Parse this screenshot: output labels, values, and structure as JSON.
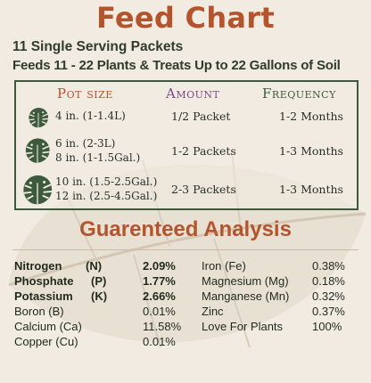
{
  "title": "Feed Chart",
  "subtitle1": "11 Single Serving Packets",
  "subtitle2": "Feeds 11 - 22 Plants & Treats Up to 22 Gallons of Soil",
  "feed_table": {
    "headers": {
      "pot_size": "Pot size",
      "amount": "Amount",
      "frequency": "Frequency"
    },
    "rows": [
      {
        "sizes": [
          "4 in. (1-1.4L)"
        ],
        "amount": "1/2 Packet",
        "frequency": "1-2 Months"
      },
      {
        "sizes": [
          "6 in. (2-3L)",
          "8 in. (1-1.5Gal.)"
        ],
        "amount": "1-2 Packets",
        "frequency": "1-3 Months"
      },
      {
        "sizes": [
          "10 in. (1.5-2.5Gal.)",
          "12 in. (2.5-4.5Gal.)"
        ],
        "amount": "2-3 Packets",
        "frequency": "1-3 Months"
      }
    ]
  },
  "analysis": {
    "title": "Guarenteed Analysis",
    "left": [
      {
        "name": "Nitrogen",
        "symbol": "(N)",
        "value": "2.09%"
      },
      {
        "name": "Phosphate",
        "symbol": "(P)",
        "value": "1.77%"
      },
      {
        "name": "Potassium",
        "symbol": "(K)",
        "value": "2.66%"
      },
      {
        "name": "Boron (B)",
        "symbol": "",
        "value": "0.01%"
      },
      {
        "name": "Calcium (Ca)",
        "symbol": "",
        "value": "11.58%"
      },
      {
        "name": "Copper (Cu)",
        "symbol": "",
        "value": "0.01%"
      }
    ],
    "right": [
      {
        "name": "Iron (Fe)",
        "value": "0.38%"
      },
      {
        "name": "Magnesium (Mg)",
        "value": "0.18%"
      },
      {
        "name": "Manganese (Mn)",
        "value": "0.32%"
      },
      {
        "name": "Zinc",
        "value": "0.37%"
      },
      {
        "name": "Love For Plants",
        "value": "100%"
      }
    ]
  },
  "colors": {
    "accent": "#b4542c",
    "leaf_green": "#3d5a3c",
    "amount_purple": "#7a4a86",
    "background": "#f1ebe2"
  },
  "icons": [
    "monstera-leaf-icon"
  ]
}
